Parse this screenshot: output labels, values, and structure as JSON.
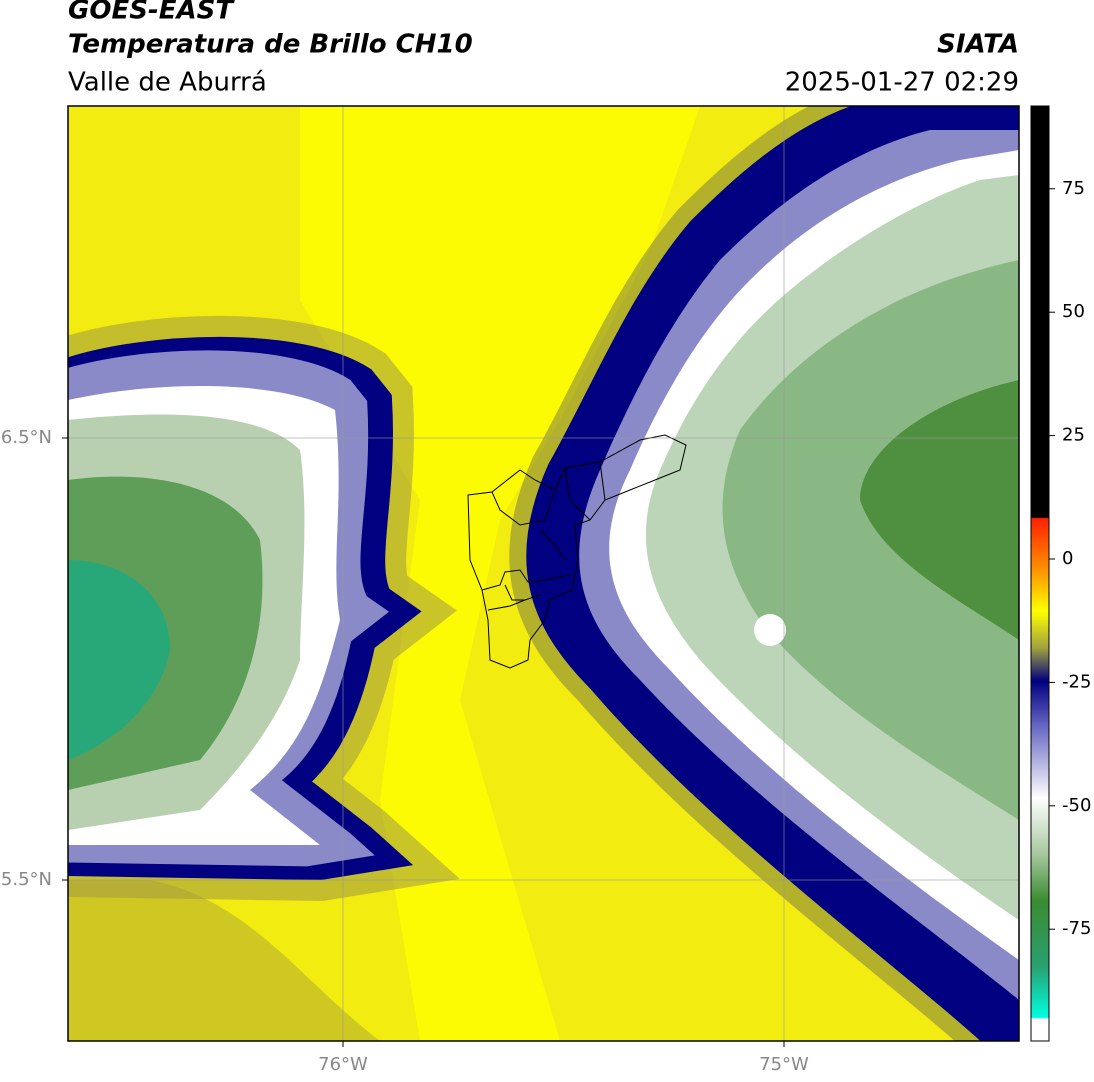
{
  "header": {
    "title": "GOES-EAST",
    "subtitle": "Temperatura de Brillo CH10",
    "region": "Valle de Aburrá",
    "source": "SIATA",
    "datetime": "2025-01-27 02:29"
  },
  "map": {
    "lat_labels": [
      "6.5°N",
      "5.5°N"
    ],
    "lon_labels": [
      "76°W",
      "75°W"
    ]
  },
  "colorbar": {
    "ticks": [
      75,
      50,
      25,
      0,
      -25,
      -50,
      -75
    ]
  }
}
